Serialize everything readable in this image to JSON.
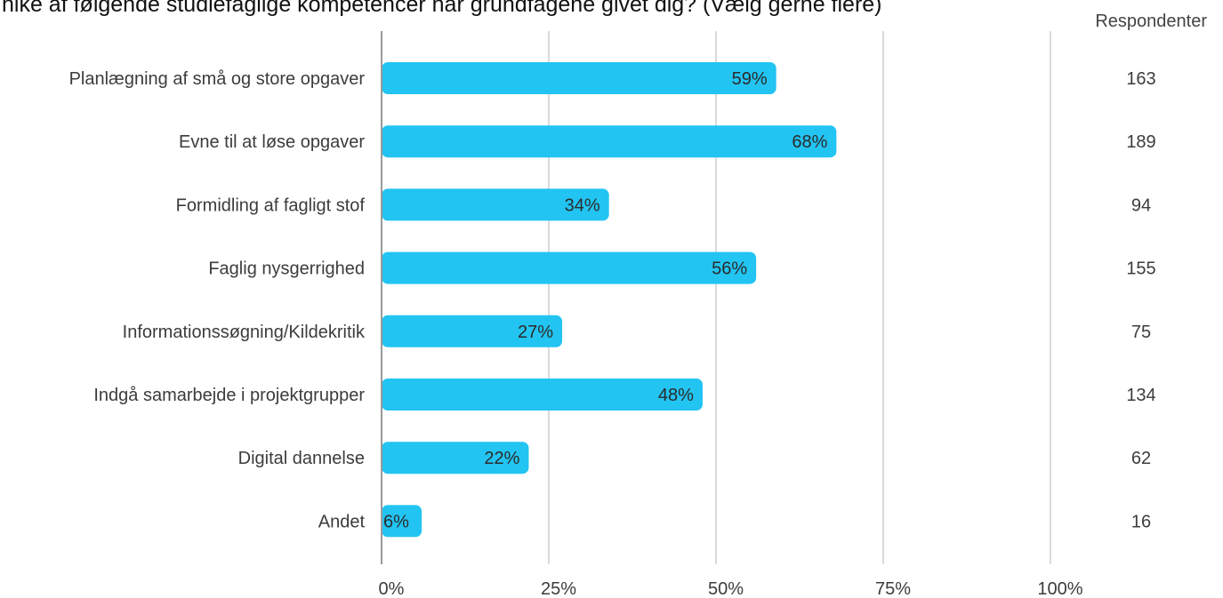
{
  "title": "hike af følgende studiefaglige kompetencer har grundfagene givet dig? (Vælg gerne flere)",
  "respondents_header": "Respondenter",
  "colors": {
    "bar": "#22c4f2",
    "grid": "#b5b5b5",
    "axis": "#9a9a9a"
  },
  "chart_data": {
    "type": "bar",
    "orientation": "horizontal",
    "categories": [
      "Planlægning af små og store opgaver",
      "Evne til at løse opgaver",
      "Formidling af fagligt stof",
      "Faglig nysgerrighed",
      "Informationssøgning/Kildekritik",
      "Indgå samarbejde i projektgrupper",
      "Digital dannelse",
      "Andet"
    ],
    "values": [
      59,
      68,
      34,
      56,
      27,
      48,
      22,
      6
    ],
    "value_labels": [
      "59%",
      "68%",
      "34%",
      "56%",
      "27%",
      "48%",
      "22%",
      "6%"
    ],
    "respondents": [
      "163",
      "189",
      "94",
      "155",
      "75",
      "134",
      "62",
      "16"
    ],
    "xlim": [
      0,
      100
    ],
    "xticks": [
      0,
      25,
      50,
      75,
      100
    ],
    "xtick_labels": [
      "0%",
      "25%",
      "50%",
      "75%",
      "100%"
    ],
    "grid": true,
    "legend": "none"
  }
}
